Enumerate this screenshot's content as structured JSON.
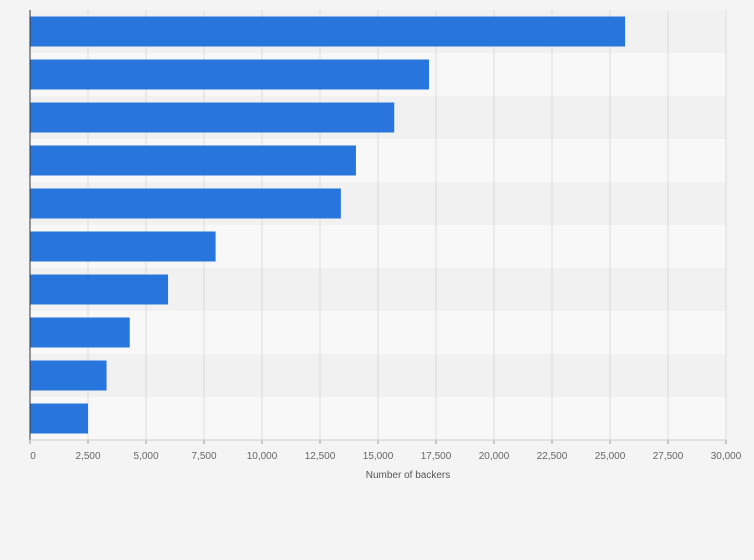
{
  "chart_data": {
    "type": "bar",
    "orientation": "horizontal",
    "categories": [
      "",
      "",
      "",
      "",
      "",
      "",
      "",
      "",
      "",
      ""
    ],
    "values": [
      25650,
      17200,
      15700,
      14050,
      13400,
      8000,
      5950,
      4300,
      3300,
      2500
    ],
    "title": "",
    "xlabel": "Number of backers",
    "ylabel": "",
    "xlim": [
      0,
      30000
    ],
    "x_ticks": [
      "0",
      "2,500",
      "5,000",
      "7,500",
      "10,000",
      "12,500",
      "15,000",
      "17,500",
      "20,000",
      "22,500",
      "25,000",
      "27,500",
      "30,000"
    ],
    "grid": true,
    "legend": "none",
    "colors": {
      "bar": "#2876dd",
      "band_dark": "#f1f1f1",
      "band_light": "#f8f8f8",
      "gridline": "#dcdcdc",
      "axis": "#333333",
      "background": "#f4f4f4"
    }
  }
}
